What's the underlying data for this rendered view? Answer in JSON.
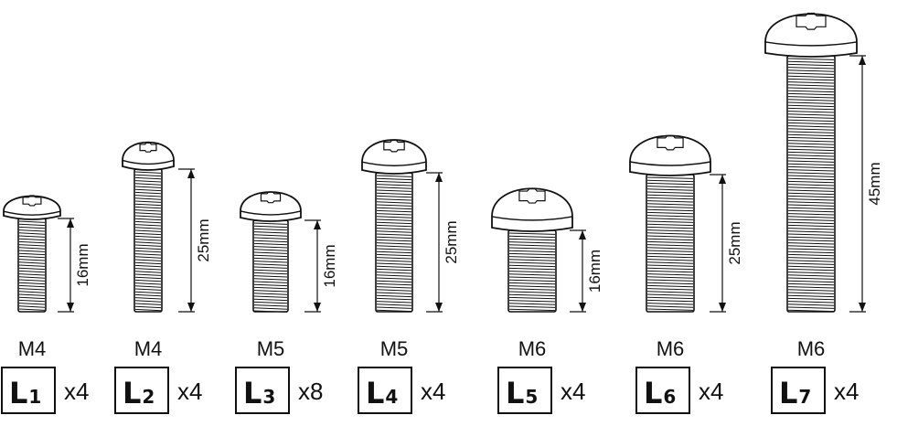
{
  "screws": [
    {
      "size": "M4",
      "length": "16mm",
      "code_letter": "L",
      "code_number": "1",
      "quantity": "x4"
    },
    {
      "size": "M4",
      "length": "25mm",
      "code_letter": "L",
      "code_number": "2",
      "quantity": "x4"
    },
    {
      "size": "M5",
      "length": "16mm",
      "code_letter": "L",
      "code_number": "3",
      "quantity": "x8"
    },
    {
      "size": "M5",
      "length": "25mm",
      "code_letter": "L",
      "code_number": "4",
      "quantity": "x4"
    },
    {
      "size": "M6",
      "length": "16mm",
      "code_letter": "L",
      "code_number": "5",
      "quantity": "x4"
    },
    {
      "size": "M6",
      "length": "25mm",
      "code_letter": "L",
      "code_number": "6",
      "quantity": "x4"
    },
    {
      "size": "M6",
      "length": "45mm",
      "code_letter": "L",
      "code_number": "7",
      "quantity": "x4"
    }
  ],
  "colors": {
    "stroke": "#111111",
    "background": "#ffffff"
  }
}
